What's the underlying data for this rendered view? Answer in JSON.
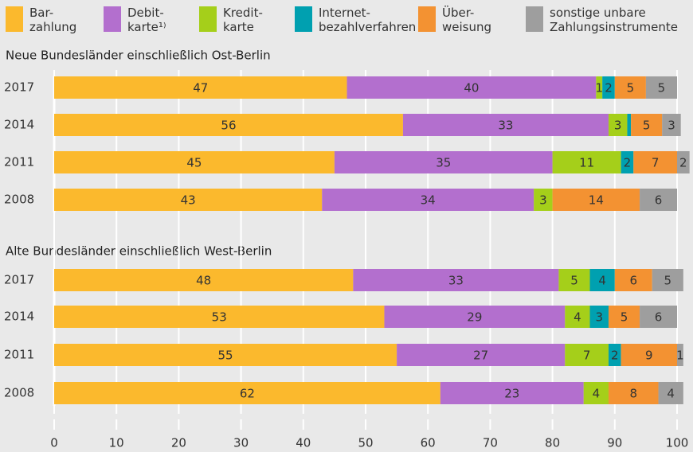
{
  "chart_data": [
    {
      "type": "bar",
      "orientation": "horizontal",
      "stacked": true,
      "title": "Neue Bundesländer einschließlich Ost-Berlin",
      "categories": [
        "2017",
        "2014",
        "2011",
        "2008"
      ],
      "series": [
        {
          "name": "Bar-\nzahlung",
          "color": "#fbb92d",
          "values": [
            47,
            56,
            45,
            43
          ]
        },
        {
          "name": "Debit-\nkarte¹⁾",
          "color": "#b36fce",
          "values": [
            40,
            33,
            35,
            34
          ]
        },
        {
          "name": "Kredit-\nkarte",
          "color": "#a5cf1a",
          "values": [
            1,
            3,
            11,
            3
          ]
        },
        {
          "name": "Internet-\nbezahlverfahren",
          "color": "#00a0b0",
          "values": [
            2,
            0.6,
            2,
            0
          ]
        },
        {
          "name": "Über-\nweisung",
          "color": "#f39232",
          "values": [
            5,
            5,
            7,
            14
          ]
        },
        {
          "name": "sonstige unbare\nZahlungsinstrumente",
          "color": "#9e9e9e",
          "values": [
            5,
            3,
            2,
            6
          ]
        }
      ]
    },
    {
      "type": "bar",
      "orientation": "horizontal",
      "stacked": true,
      "title": "Alte Bundesländer einschließlich West-Berlin",
      "categories": [
        "2017",
        "2014",
        "2011",
        "2008"
      ],
      "series": [
        {
          "values": [
            48,
            53,
            55,
            62
          ]
        },
        {
          "values": [
            33,
            29,
            27,
            23
          ]
        },
        {
          "values": [
            5,
            4,
            7,
            4
          ]
        },
        {
          "values": [
            4,
            3,
            2,
            0
          ]
        },
        {
          "values": [
            6,
            5,
            9,
            8
          ]
        },
        {
          "values": [
            5,
            6,
            1,
            4
          ]
        }
      ],
      "xlim": [
        0,
        100
      ],
      "xticks": [
        0,
        10,
        20,
        30,
        40,
        50,
        60,
        70,
        80,
        90,
        100
      ],
      "grid": true
    }
  ]
}
